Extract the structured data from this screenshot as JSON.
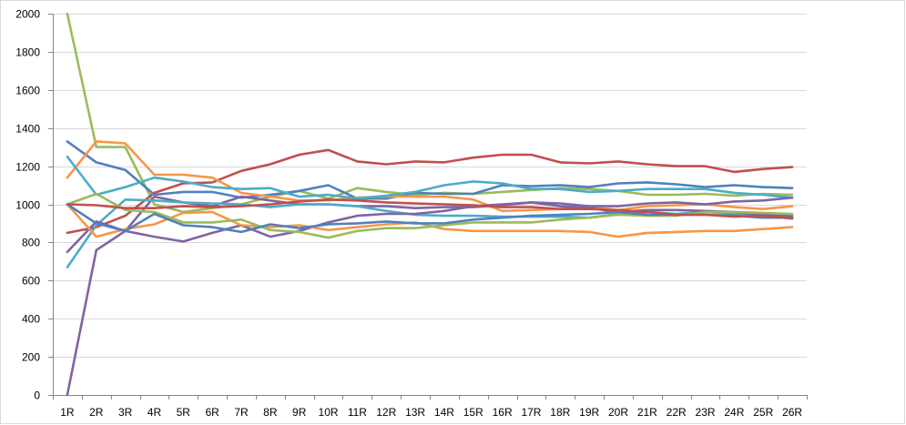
{
  "chart_data": {
    "type": "line",
    "title": "",
    "xlabel": "",
    "ylabel": "",
    "ylim": [
      0,
      2000
    ],
    "yticks": [
      "0",
      "200",
      "400",
      "600",
      "800",
      "1000",
      "1200",
      "1400",
      "1600",
      "1800",
      "2000"
    ],
    "grid": "horizontal",
    "legend": "none",
    "categories": [
      "1R",
      "2R",
      "3R",
      "4R",
      "5R",
      "6R",
      "7R",
      "8R",
      "9R",
      "10R",
      "11R",
      "12R",
      "13R",
      "14R",
      "15R",
      "16R",
      "17R",
      "18R",
      "19R",
      "20R",
      "21R",
      "22R",
      "23R",
      "24R",
      "25R",
      "26R"
    ],
    "series": [
      {
        "color": "#9BBB59",
        "values": [
          2000,
          1300,
          1300,
          1000,
          960,
          980,
          1000,
          1040,
          1070,
          1030,
          1085,
          1065,
          1050,
          1060,
          1055,
          1065,
          1075,
          1085,
          1080,
          1070,
          1050,
          1050,
          1055,
          1045,
          1055,
          1050
        ]
      },
      {
        "color": "#C0504D",
        "values": [
          850,
          880,
          940,
          1060,
          1110,
          1115,
          1175,
          1210,
          1260,
          1285,
          1225,
          1210,
          1225,
          1220,
          1245,
          1260,
          1260,
          1220,
          1215,
          1225,
          1210,
          1200,
          1200,
          1170,
          1185,
          1195
        ]
      },
      {
        "color": "#4F81BD",
        "values": [
          1330,
          1220,
          1180,
          1050,
          1065,
          1065,
          1035,
          1050,
          1070,
          1100,
          1030,
          1030,
          1060,
          1055,
          1055,
          1100,
          1095,
          1100,
          1090,
          1110,
          1115,
          1105,
          1090,
          1100,
          1090,
          1085
        ]
      },
      {
        "color": "#F79646",
        "values": [
          1140,
          1330,
          1320,
          1155,
          1155,
          1140,
          1060,
          1040,
          1020,
          1020,
          1035,
          1040,
          1040,
          1040,
          1025,
          965,
          970,
          975,
          985,
          970,
          990,
          995,
          1000,
          985,
          975,
          990
        ]
      },
      {
        "color": "#4BACC6",
        "values": [
          1250,
          1050,
          1090,
          1140,
          1120,
          1090,
          1080,
          1085,
          1040,
          1050,
          1030,
          1045,
          1065,
          1100,
          1120,
          1110,
          1080,
          1080,
          1065,
          1070,
          1080,
          1080,
          1080,
          1060,
          1050,
          1035
        ]
      },
      {
        "color": "#8064A2",
        "values": [
          0,
          760,
          860,
          1040,
          1010,
          990,
          1040,
          1020,
          1000,
          1000,
          990,
          990,
          980,
          985,
          985,
          995,
          1010,
          1005,
          990,
          990,
          1005,
          1010,
          1000,
          1015,
          1020,
          1035
        ]
      },
      {
        "color": "#4BACC6",
        "values": [
          670,
          890,
          1025,
          1020,
          1010,
          1005,
          1000,
          985,
          1000,
          1000,
          990,
          965,
          945,
          940,
          940,
          935,
          935,
          935,
          930,
          950,
          960,
          950,
          960,
          950,
          945,
          945
        ]
      },
      {
        "color": "#8064A2",
        "values": [
          750,
          910,
          860,
          830,
          805,
          850,
          890,
          830,
          860,
          905,
          940,
          950,
          950,
          965,
          990,
          1000,
          1010,
          990,
          980,
          960,
          970,
          970,
          965,
          960,
          945,
          935
        ]
      },
      {
        "color": "#F79646",
        "values": [
          1000,
          830,
          870,
          895,
          955,
          960,
          890,
          880,
          890,
          865,
          880,
          895,
          905,
          870,
          860,
          860,
          860,
          860,
          855,
          830,
          850,
          855,
          860,
          860,
          870,
          880
        ]
      },
      {
        "color": "#9BBB59",
        "values": [
          1000,
          1055,
          970,
          960,
          905,
          905,
          920,
          865,
          855,
          825,
          860,
          875,
          875,
          890,
          905,
          905,
          905,
          920,
          930,
          945,
          940,
          940,
          960,
          960,
          955,
          950
        ]
      },
      {
        "color": "#4F81BD",
        "values": [
          1000,
          900,
          860,
          950,
          890,
          880,
          855,
          895,
          875,
          895,
          900,
          910,
          900,
          900,
          920,
          930,
          940,
          945,
          950,
          960,
          945,
          945,
          945,
          940,
          930,
          930
        ]
      },
      {
        "color": "#C0504D",
        "values": [
          1000,
          995,
          980,
          980,
          990,
          985,
          990,
          1000,
          1015,
          1025,
          1020,
          1010,
          1005,
          1000,
          995,
          985,
          985,
          975,
          975,
          970,
          960,
          945,
          945,
          935,
          940,
          925
        ]
      }
    ]
  }
}
